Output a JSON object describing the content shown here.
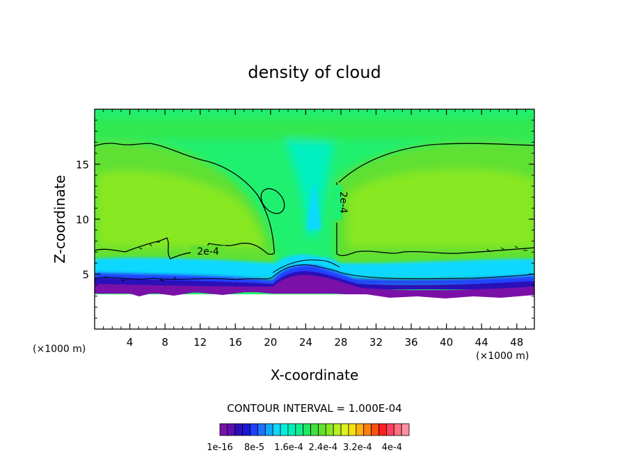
{
  "chart_data": {
    "type": "heatmap",
    "title": "density of cloud",
    "xlabel": "X-coordinate",
    "ylabel": "Z-coordinate",
    "x_units": "(×1000 m)",
    "y_units": "(×1000 m)",
    "xlim": [
      0,
      50
    ],
    "ylim": [
      0,
      20
    ],
    "x_ticks": [
      4,
      8,
      12,
      16,
      20,
      24,
      28,
      32,
      36,
      40,
      44,
      48
    ],
    "y_ticks": [
      5,
      10,
      15
    ],
    "contour_interval_text": "CONTOUR INTERVAL = 1.000E-04",
    "contour_line_label": "2e-4",
    "contour_line_labels": [
      {
        "text": "2e-4",
        "x": 13.0,
        "z": 6.9
      },
      {
        "text": "2e-4",
        "x": 27.6,
        "z": 11.7
      }
    ],
    "colorbar": {
      "min": 1e-16,
      "max": 0.00044,
      "tick_labels": [
        "1e-16",
        "8e-5",
        "1.6e-4",
        "2.4e-4",
        "3.2e-4",
        "4e-4"
      ],
      "colors": [
        "#7a10a8",
        "#5a10b0",
        "#2a10b8",
        "#1818d8",
        "#2040ff",
        "#2070ff",
        "#10a8ff",
        "#10d8ff",
        "#00f0e0",
        "#00f0b8",
        "#10f090",
        "#20e860",
        "#40e040",
        "#60e030",
        "#88e820",
        "#b8f020",
        "#e0f020",
        "#f8e010",
        "#ffb010",
        "#ff8010",
        "#ff5010",
        "#ff2020",
        "#ff4060",
        "#ff7080",
        "#ff90a0"
      ]
    }
  }
}
